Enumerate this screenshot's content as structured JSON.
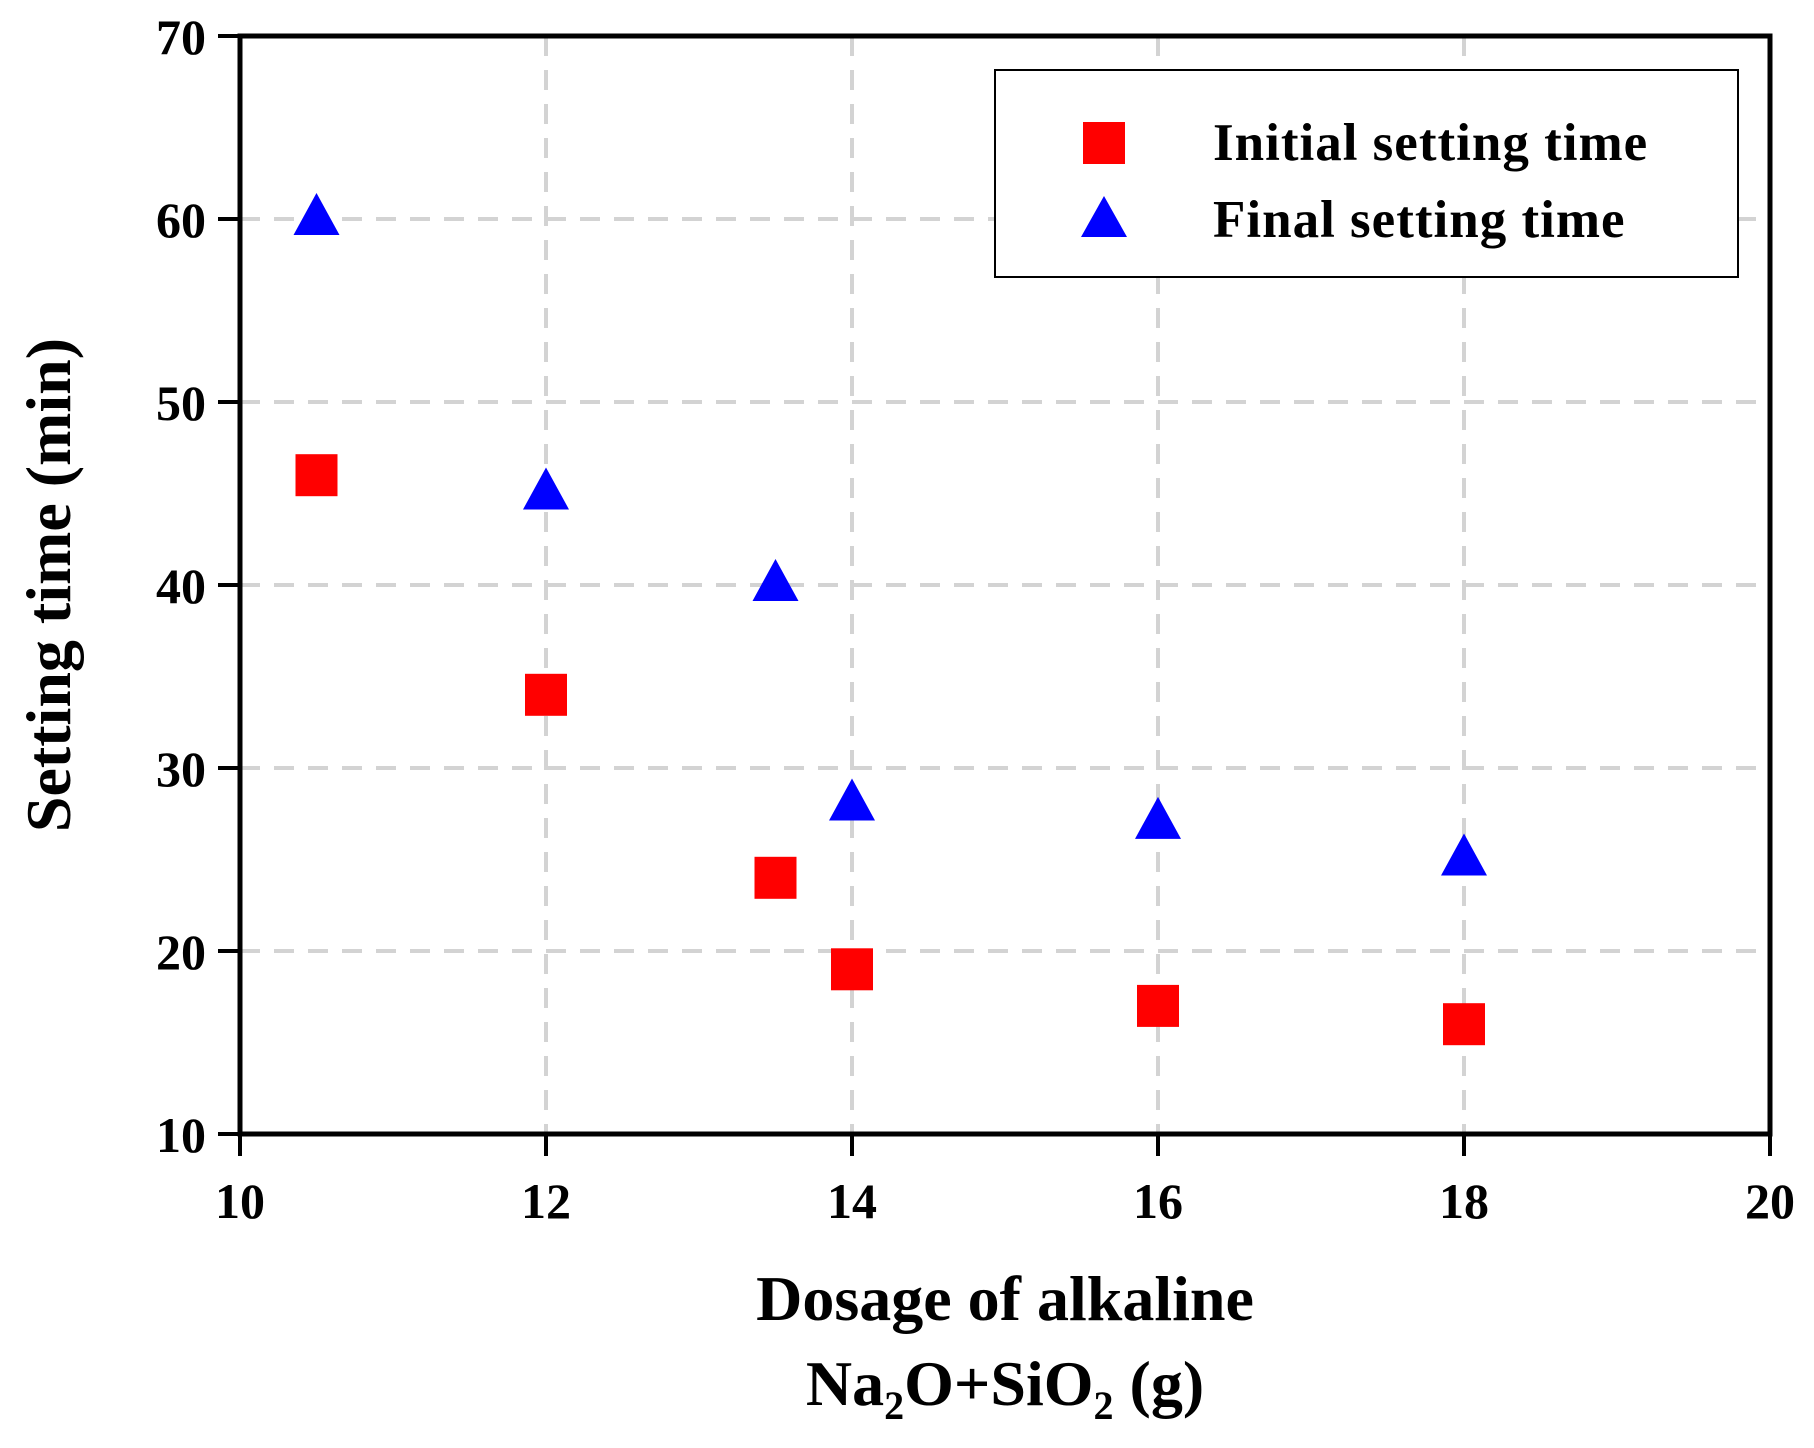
{
  "chart_data": {
    "type": "scatter",
    "title": "",
    "xlabel_line1": "Dosage of alkaline",
    "xlabel_line2": {
      "t1": "Na",
      "s1": "2",
      "t2": "O+SiO",
      "s2": "2",
      "t3": " (g)"
    },
    "ylabel": "Setting time (min)",
    "xlim": [
      10,
      20
    ],
    "ylim": [
      10,
      70
    ],
    "x_ticks": [
      10,
      12,
      14,
      16,
      18,
      20
    ],
    "y_ticks": [
      10,
      20,
      30,
      40,
      50,
      60,
      70
    ],
    "grid": true,
    "legend_position": "top-right",
    "series": [
      {
        "name": "Initial setting time",
        "marker": "square",
        "color": "#ff0000",
        "x": [
          10.5,
          12,
          13.5,
          14,
          16,
          18
        ],
        "y": [
          46,
          34,
          24,
          19,
          17,
          16
        ]
      },
      {
        "name": "Final setting time",
        "marker": "triangle",
        "color": "#0000ff",
        "x": [
          10.5,
          12,
          13.5,
          14,
          16,
          18
        ],
        "y": [
          60,
          45,
          40,
          28,
          27,
          25
        ]
      }
    ]
  }
}
